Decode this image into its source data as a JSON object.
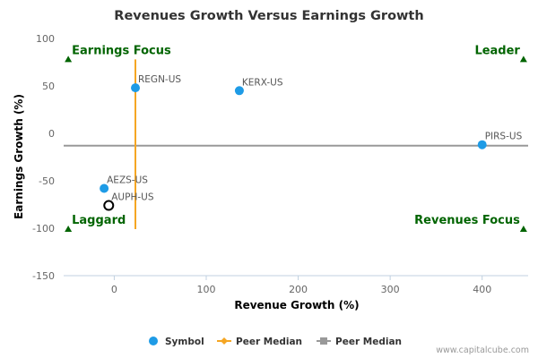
{
  "chart_data": {
    "type": "scatter",
    "title": "Revenues Growth Versus Earnings Growth",
    "xlabel": "Revenue Growth (%)",
    "ylabel": "Earnings Growth (%)",
    "xlim": [
      -55,
      450
    ],
    "ylim": [
      -150,
      100
    ],
    "xticks": [
      0,
      100,
      200,
      300,
      400
    ],
    "xtick_labels": [
      "0",
      "100",
      "200",
      "300",
      "400"
    ],
    "yticks": [
      -150,
      -100,
      -50,
      0,
      50,
      100
    ],
    "ytick_labels": [
      "-150",
      "-100",
      "-50",
      "0",
      "50",
      "100"
    ],
    "grid": false,
    "points": [
      {
        "label": "REGN-US",
        "x": 23,
        "y": 48,
        "style": "filled"
      },
      {
        "label": "KERX-US",
        "x": 136,
        "y": 45,
        "style": "filled"
      },
      {
        "label": "PIRS-US",
        "x": 400,
        "y": -12,
        "style": "filled"
      },
      {
        "label": "AEZS-US",
        "x": -11,
        "y": -58,
        "style": "filled"
      },
      {
        "label": "AUPH-US",
        "x": -6,
        "y": -76,
        "style": "hollow"
      }
    ],
    "peer_median_revenue": 23,
    "peer_median_earnings": -13,
    "peer_median_v_yrange": [
      78,
      -101
    ],
    "quadrants": [
      {
        "label": "Earnings Focus",
        "x": -50,
        "y": 78,
        "anchor": "start"
      },
      {
        "label": "Leader",
        "x": 445,
        "y": 78,
        "anchor": "end"
      },
      {
        "label": "Laggard",
        "x": -50,
        "y": -101,
        "anchor": "start"
      },
      {
        "label": "Revenues Focus",
        "x": 445,
        "y": -101,
        "anchor": "end"
      }
    ],
    "legend": [
      {
        "name": "Symbol",
        "color": "#1e9be6",
        "marker": "circle"
      },
      {
        "name": "Peer Median",
        "color": "#f5a623",
        "marker": "diamond-line"
      },
      {
        "name": "Peer Median",
        "color": "#999999",
        "marker": "square-line"
      }
    ],
    "legend_position": "bottom",
    "colors": {
      "symbol": "#1e9be6",
      "median_v": "#f5a623",
      "median_h": "#999999",
      "quadrant": "#006400"
    }
  },
  "credit": "www.capitalcube.com"
}
